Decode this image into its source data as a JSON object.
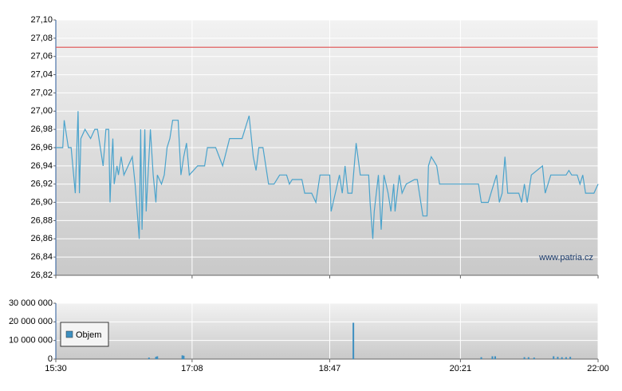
{
  "chart_data": [
    {
      "type": "line",
      "color": "#4aa3cc",
      "grid": true,
      "xlim": [
        "15:30",
        "22:00"
      ],
      "ylim": [
        26.82,
        27.1
      ],
      "yticks": [
        {
          "value": 26.82,
          "label": "26,82"
        },
        {
          "value": 26.84,
          "label": "26,84"
        },
        {
          "value": 26.86,
          "label": "26,86"
        },
        {
          "value": 26.88,
          "label": "26,88"
        },
        {
          "value": 26.9,
          "label": "26,90"
        },
        {
          "value": 26.92,
          "label": "26,92"
        },
        {
          "value": 26.94,
          "label": "26,94"
        },
        {
          "value": 26.96,
          "label": "26,96"
        },
        {
          "value": 26.98,
          "label": "26,98"
        },
        {
          "value": 27.0,
          "label": "27,00"
        },
        {
          "value": 27.02,
          "label": "27,02"
        },
        {
          "value": 27.04,
          "label": "27,04"
        },
        {
          "value": 27.06,
          "label": "27,06"
        },
        {
          "value": 27.08,
          "label": "27,08"
        },
        {
          "value": 27.1,
          "label": "27,10"
        }
      ],
      "reference_line": {
        "value": 27.07,
        "color": "#e06060"
      },
      "watermark": "www.patria.cz",
      "x": [
        "15:30",
        "15:35",
        "15:36",
        "15:39",
        "15:41",
        "15:44",
        "15:46",
        "15:47",
        "15:48",
        "15:51",
        "15:53",
        "15:55",
        "15:58",
        "16:00",
        "16:02",
        "16:04",
        "16:06",
        "16:08",
        "16:09",
        "16:10",
        "16:11",
        "16:12",
        "16:14",
        "16:15",
        "16:17",
        "16:19",
        "16:22",
        "16:25",
        "16:27",
        "16:30",
        "16:31",
        "16:32",
        "16:34",
        "16:35",
        "16:38",
        "16:40",
        "16:42",
        "16:43",
        "16:46",
        "16:48",
        "16:50",
        "16:52",
        "16:54",
        "16:58",
        "17:00",
        "17:02",
        "17:04",
        "17:06",
        "17:12",
        "17:17",
        "17:19",
        "17:25",
        "17:30",
        "17:35",
        "17:44",
        "17:49",
        "17:52",
        "17:54",
        "17:56",
        "17:59",
        "18:03",
        "18:07",
        "18:11",
        "18:16",
        "18:18",
        "18:20",
        "18:27",
        "18:29",
        "18:34",
        "18:37",
        "18:40",
        "18:47",
        "18:48",
        "18:51",
        "18:54",
        "18:56",
        "18:58",
        "19:00",
        "19:03",
        "19:06",
        "19:09",
        "19:15",
        "19:16",
        "19:18",
        "19:19",
        "19:22",
        "19:24",
        "19:26",
        "19:29",
        "19:31",
        "19:33",
        "19:34",
        "19:37",
        "19:39",
        "19:42",
        "19:48",
        "19:50",
        "19:54",
        "19:57",
        "19:58",
        "20:00",
        "20:02",
        "20:04",
        "20:06",
        "20:34",
        "20:36",
        "20:41",
        "20:43",
        "20:47",
        "20:49",
        "20:51",
        "20:53",
        "20:55",
        "21:03",
        "21:05",
        "21:07",
        "21:09",
        "21:12",
        "21:20",
        "21:22",
        "21:26",
        "21:37",
        "21:39",
        "21:41",
        "21:45",
        "21:47",
        "21:49",
        "21:51",
        "21:57",
        "22:00"
      ],
      "values": [
        26.96,
        26.96,
        26.99,
        26.96,
        26.96,
        26.91,
        27.0,
        26.91,
        26.97,
        26.98,
        26.975,
        26.97,
        26.98,
        26.98,
        26.96,
        26.94,
        26.98,
        26.98,
        26.9,
        26.94,
        26.97,
        26.92,
        26.94,
        26.93,
        26.95,
        26.93,
        26.94,
        26.95,
        26.92,
        26.86,
        26.98,
        26.87,
        26.98,
        26.89,
        26.98,
        26.93,
        26.9,
        26.93,
        26.92,
        26.93,
        26.96,
        26.97,
        26.99,
        26.99,
        26.93,
        26.95,
        26.965,
        26.93,
        26.94,
        26.94,
        26.96,
        26.96,
        26.94,
        26.97,
        26.97,
        26.995,
        26.95,
        26.935,
        26.96,
        26.96,
        26.92,
        26.92,
        26.93,
        26.93,
        26.92,
        26.925,
        26.925,
        26.91,
        26.91,
        26.9,
        26.93,
        26.93,
        26.89,
        26.91,
        26.93,
        26.91,
        26.94,
        26.91,
        26.91,
        26.965,
        26.93,
        26.93,
        26.9,
        26.86,
        26.89,
        26.93,
        26.87,
        26.93,
        26.91,
        26.89,
        26.92,
        26.89,
        26.93,
        26.91,
        26.92,
        26.925,
        26.925,
        26.885,
        26.885,
        26.94,
        26.95,
        26.945,
        26.94,
        26.92,
        26.92,
        26.9,
        26.9,
        26.91,
        26.93,
        26.9,
        26.91,
        26.95,
        26.91,
        26.91,
        26.9,
        26.92,
        26.9,
        26.93,
        26.94,
        26.91,
        26.93,
        26.93,
        26.935,
        26.93,
        26.93,
        26.92,
        26.93,
        26.91,
        26.91,
        26.92
      ]
    },
    {
      "type": "bar",
      "grid": true,
      "legend": "upper left",
      "xlim": [
        "15:30",
        "22:00"
      ],
      "xticks": [
        "15:30",
        "17:08",
        "18:47",
        "20:21",
        "22:00"
      ],
      "ylim": [
        0,
        30000000
      ],
      "yticks": [
        0,
        {
          "value": 10000000,
          "label": "10 000 000"
        },
        {
          "value": 20000000,
          "label": "20 000 000"
        },
        {
          "value": 30000000,
          "label": "30 000 000"
        }
      ],
      "x": [
        "16:37",
        "16:42",
        "16:43",
        "17:01",
        "17:02",
        "19:04",
        "20:36",
        "20:44",
        "20:46",
        "21:07",
        "21:10",
        "21:14",
        "21:28",
        "21:31",
        "21:34",
        "21:37",
        "21:40"
      ],
      "series": [
        {
          "name": "Objem",
          "color": "#3d8fc0",
          "values": [
            800000,
            1200000,
            1500000,
            2000000,
            1800000,
            19500000,
            1000000,
            1500000,
            1500000,
            1000000,
            1000000,
            800000,
            1500000,
            1200000,
            1000000,
            1000000,
            1200000
          ]
        }
      ]
    }
  ]
}
